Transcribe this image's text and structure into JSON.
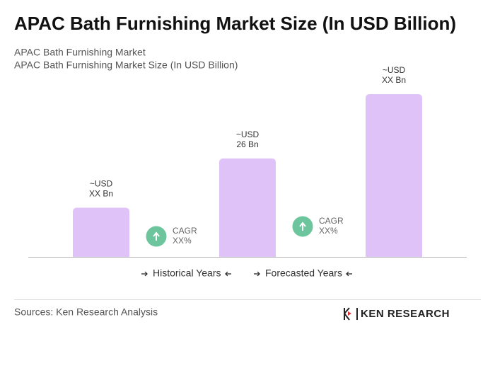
{
  "chart_data": {
    "type": "bar",
    "title": "APAC Bath Furnishing Market Size (In USD Billion)",
    "subtitle": [
      "APAC Bath Furnishing Market",
      "APAC Bath Furnishing Market Size (In USD Billion)"
    ],
    "values": [
      13,
      26,
      43
    ],
    "value_labels": [
      [
        "~USD",
        "XX Bn"
      ],
      [
        "~USD",
        "26 Bn"
      ],
      [
        "~USD",
        "XX Bn"
      ]
    ],
    "color": "#dfc3f8",
    "cagr_labels": [
      [
        "CAGR",
        "XX%"
      ],
      [
        "CAGR",
        "XX%"
      ]
    ],
    "cagr_color": "#6cc59c",
    "legend_labels": [
      "Historical Years",
      "Forecasted Years"
    ],
    "source": "Sources: Ken Research Analysis",
    "logo": "KEN RESEARCH"
  }
}
